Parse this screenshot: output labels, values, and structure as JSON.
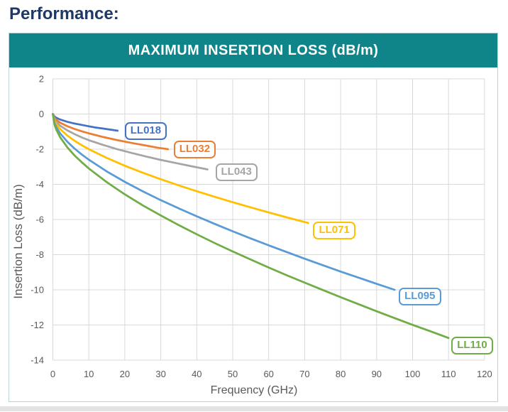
{
  "page": {
    "heading": "Performance:"
  },
  "colors": {
    "heading_text": "#1F3864",
    "header_bar": "#0F858A",
    "header_text": "#FFFFFF",
    "card_border": "#B7D6D8",
    "gridline": "#D9D9D9",
    "axis_text": "#595959",
    "bottom_strip": "#E3E3E3"
  },
  "chart_data": {
    "type": "line",
    "title": "MAXIMUM INSERTION LOSS (dB/m)",
    "xlabel": "Frequency (GHz)",
    "ylabel": "Insertion Loss (dB/m)",
    "xlim": [
      0,
      120
    ],
    "ylim": [
      -14,
      2
    ],
    "x_ticks": [
      0,
      10,
      20,
      30,
      40,
      50,
      60,
      70,
      80,
      90,
      100,
      110,
      120
    ],
    "y_ticks": [
      2,
      0,
      -2,
      -4,
      -6,
      -8,
      -10,
      -12,
      -14
    ],
    "grid": true,
    "legend": "inline-curve-labels",
    "series": [
      {
        "name": "LL018",
        "color": "#4472C4",
        "label_dx": 10,
        "label_dy": -12,
        "points": [
          [
            0,
            0
          ],
          [
            0.5,
            -0.15
          ],
          [
            1,
            -0.22
          ],
          [
            2,
            -0.31
          ],
          [
            4,
            -0.44
          ],
          [
            6,
            -0.54
          ],
          [
            8,
            -0.62
          ],
          [
            10,
            -0.7
          ],
          [
            12,
            -0.77
          ],
          [
            14,
            -0.83
          ],
          [
            16,
            -0.89
          ],
          [
            18,
            -0.95
          ]
        ]
      },
      {
        "name": "LL032",
        "color": "#ED7D31",
        "label_dx": 8,
        "label_dy": -12,
        "points": [
          [
            0,
            0
          ],
          [
            0.5,
            -0.24
          ],
          [
            1,
            -0.34
          ],
          [
            2,
            -0.49
          ],
          [
            4,
            -0.69
          ],
          [
            6,
            -0.85
          ],
          [
            8,
            -0.98
          ],
          [
            10,
            -1.1
          ],
          [
            14,
            -1.31
          ],
          [
            18,
            -1.49
          ],
          [
            22,
            -1.65
          ],
          [
            26,
            -1.8
          ],
          [
            29,
            -1.91
          ],
          [
            32,
            -2.0
          ]
        ]
      },
      {
        "name": "LL043",
        "color": "#A5A5A5",
        "label_dx": 11,
        "label_dy": -8,
        "points": [
          [
            0,
            0
          ],
          [
            0.5,
            -0.33
          ],
          [
            1,
            -0.46
          ],
          [
            2,
            -0.66
          ],
          [
            4,
            -0.93
          ],
          [
            6,
            -1.14
          ],
          [
            8,
            -1.33
          ],
          [
            10,
            -1.49
          ],
          [
            14,
            -1.76
          ],
          [
            18,
            -2.01
          ],
          [
            22,
            -2.22
          ],
          [
            26,
            -2.42
          ],
          [
            30,
            -2.61
          ],
          [
            34,
            -2.78
          ],
          [
            38,
            -2.95
          ],
          [
            43,
            -3.15
          ]
        ]
      },
      {
        "name": "LL071",
        "color": "#FFC000",
        "label_dx": 7,
        "label_dy": -2,
        "points": [
          [
            0,
            0
          ],
          [
            0.5,
            -0.41
          ],
          [
            1,
            -0.59
          ],
          [
            2,
            -0.85
          ],
          [
            4,
            -1.22
          ],
          [
            6,
            -1.52
          ],
          [
            8,
            -1.77
          ],
          [
            10,
            -2.0
          ],
          [
            15,
            -2.5
          ],
          [
            20,
            -2.94
          ],
          [
            25,
            -3.34
          ],
          [
            30,
            -3.71
          ],
          [
            35,
            -4.06
          ],
          [
            40,
            -4.39
          ],
          [
            45,
            -4.71
          ],
          [
            50,
            -5.02
          ],
          [
            55,
            -5.31
          ],
          [
            60,
            -5.6
          ],
          [
            65,
            -5.88
          ],
          [
            71,
            -6.2
          ]
        ]
      },
      {
        "name": "LL095",
        "color": "#5B9BD5",
        "label_dx": 6,
        "label_dy": -3,
        "points": [
          [
            0,
            0
          ],
          [
            0.5,
            -0.53
          ],
          [
            1,
            -0.76
          ],
          [
            2,
            -1.09
          ],
          [
            4,
            -1.57
          ],
          [
            6,
            -1.96
          ],
          [
            8,
            -2.3
          ],
          [
            10,
            -2.6
          ],
          [
            15,
            -3.27
          ],
          [
            20,
            -3.86
          ],
          [
            25,
            -4.4
          ],
          [
            30,
            -4.9
          ],
          [
            35,
            -5.37
          ],
          [
            40,
            -5.82
          ],
          [
            45,
            -6.25
          ],
          [
            50,
            -6.67
          ],
          [
            55,
            -7.08
          ],
          [
            60,
            -7.47
          ],
          [
            65,
            -7.85
          ],
          [
            70,
            -8.23
          ],
          [
            75,
            -8.6
          ],
          [
            80,
            -8.96
          ],
          [
            85,
            -9.31
          ],
          [
            90,
            -9.66
          ],
          [
            95,
            -10.0
          ]
        ]
      },
      {
        "name": "LL110",
        "color": "#70AD47",
        "label_dx": 4,
        "label_dy": -2,
        "points": [
          [
            0,
            0
          ],
          [
            0.5,
            -0.64
          ],
          [
            1,
            -0.91
          ],
          [
            2,
            -1.31
          ],
          [
            4,
            -1.89
          ],
          [
            6,
            -2.35
          ],
          [
            8,
            -2.74
          ],
          [
            10,
            -3.1
          ],
          [
            15,
            -3.88
          ],
          [
            20,
            -4.57
          ],
          [
            25,
            -5.2
          ],
          [
            30,
            -5.77
          ],
          [
            35,
            -6.32
          ],
          [
            40,
            -6.84
          ],
          [
            45,
            -7.34
          ],
          [
            50,
            -7.82
          ],
          [
            55,
            -8.28
          ],
          [
            60,
            -8.73
          ],
          [
            65,
            -9.17
          ],
          [
            70,
            -9.59
          ],
          [
            75,
            -10.01
          ],
          [
            80,
            -10.42
          ],
          [
            85,
            -10.82
          ],
          [
            90,
            -11.22
          ],
          [
            95,
            -11.61
          ],
          [
            100,
            -11.99
          ],
          [
            105,
            -12.36
          ],
          [
            110,
            -12.74
          ]
        ]
      }
    ]
  }
}
